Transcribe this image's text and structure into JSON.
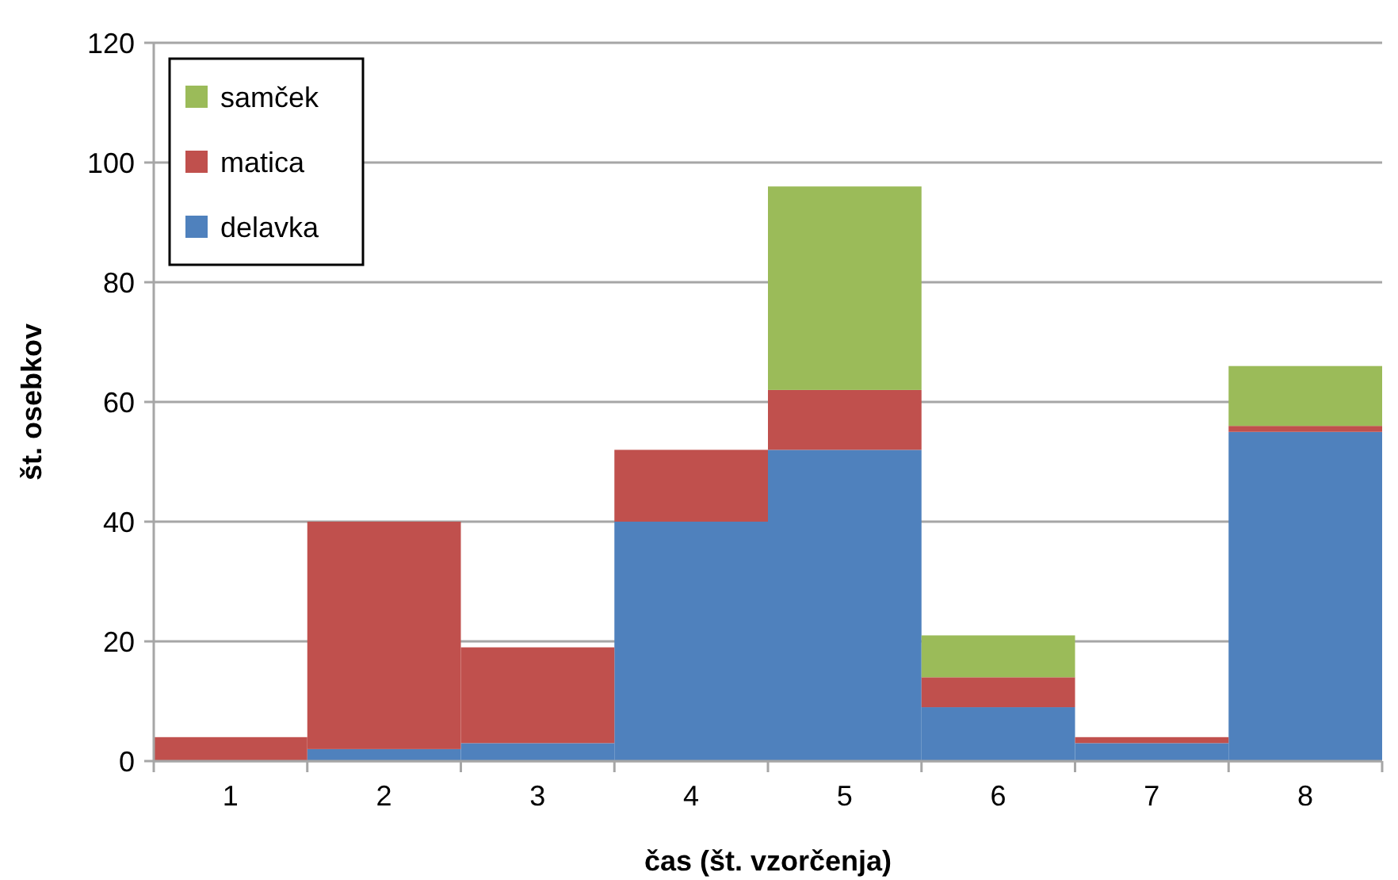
{
  "chart_data": {
    "type": "bar",
    "stacked": true,
    "xlabel": "čas (št. vzorčenja)",
    "ylabel": "št. osebkov",
    "categories": [
      "1",
      "2",
      "3",
      "4",
      "5",
      "6",
      "7",
      "8"
    ],
    "series": [
      {
        "name": "delavka",
        "color": "#4f81bd",
        "values": [
          0,
          2,
          3,
          40,
          52,
          9,
          3,
          55
        ]
      },
      {
        "name": "matica",
        "color": "#c0504d",
        "values": [
          4,
          38,
          16,
          12,
          10,
          5,
          1,
          1
        ]
      },
      {
        "name": "samček",
        "color": "#9bbb59",
        "values": [
          0,
          0,
          0,
          0,
          34,
          7,
          0,
          10
        ]
      }
    ],
    "ylim": [
      0,
      120
    ],
    "yticks": [
      0,
      20,
      40,
      60,
      80,
      100,
      120
    ],
    "grid": "y",
    "legend": "top left"
  }
}
